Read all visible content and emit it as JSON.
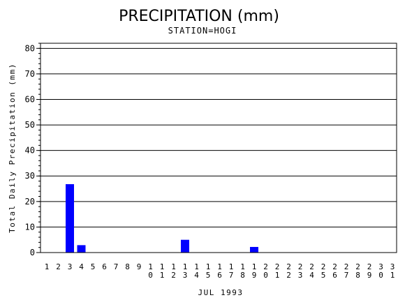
{
  "chart_data": {
    "type": "bar",
    "title": "PRECIPITATION (mm)",
    "subtitle": "STATION=HOGI",
    "xlabel": "JUL 1993",
    "ylabel": "Total Daily Precipitation (mm)",
    "categories": [
      "1",
      "2",
      "3",
      "4",
      "5",
      "6",
      "7",
      "8",
      "9",
      "10",
      "11",
      "12",
      "13",
      "14",
      "15",
      "16",
      "17",
      "18",
      "19",
      "20",
      "21",
      "22",
      "23",
      "24",
      "25",
      "26",
      "27",
      "28",
      "29",
      "30",
      "31"
    ],
    "values": [
      0,
      0,
      26.8,
      2.9,
      0,
      0,
      0,
      0,
      0,
      0,
      0,
      0,
      5.0,
      0,
      0,
      0,
      0,
      0,
      2.2,
      0,
      0,
      0,
      0,
      0,
      0,
      0,
      0,
      0,
      0,
      0,
      0
    ],
    "ylim": [
      0,
      82
    ],
    "yticks": [
      0,
      10,
      20,
      30,
      40,
      50,
      60,
      70,
      80
    ],
    "grid": true,
    "bar_color": "#0000ff"
  }
}
